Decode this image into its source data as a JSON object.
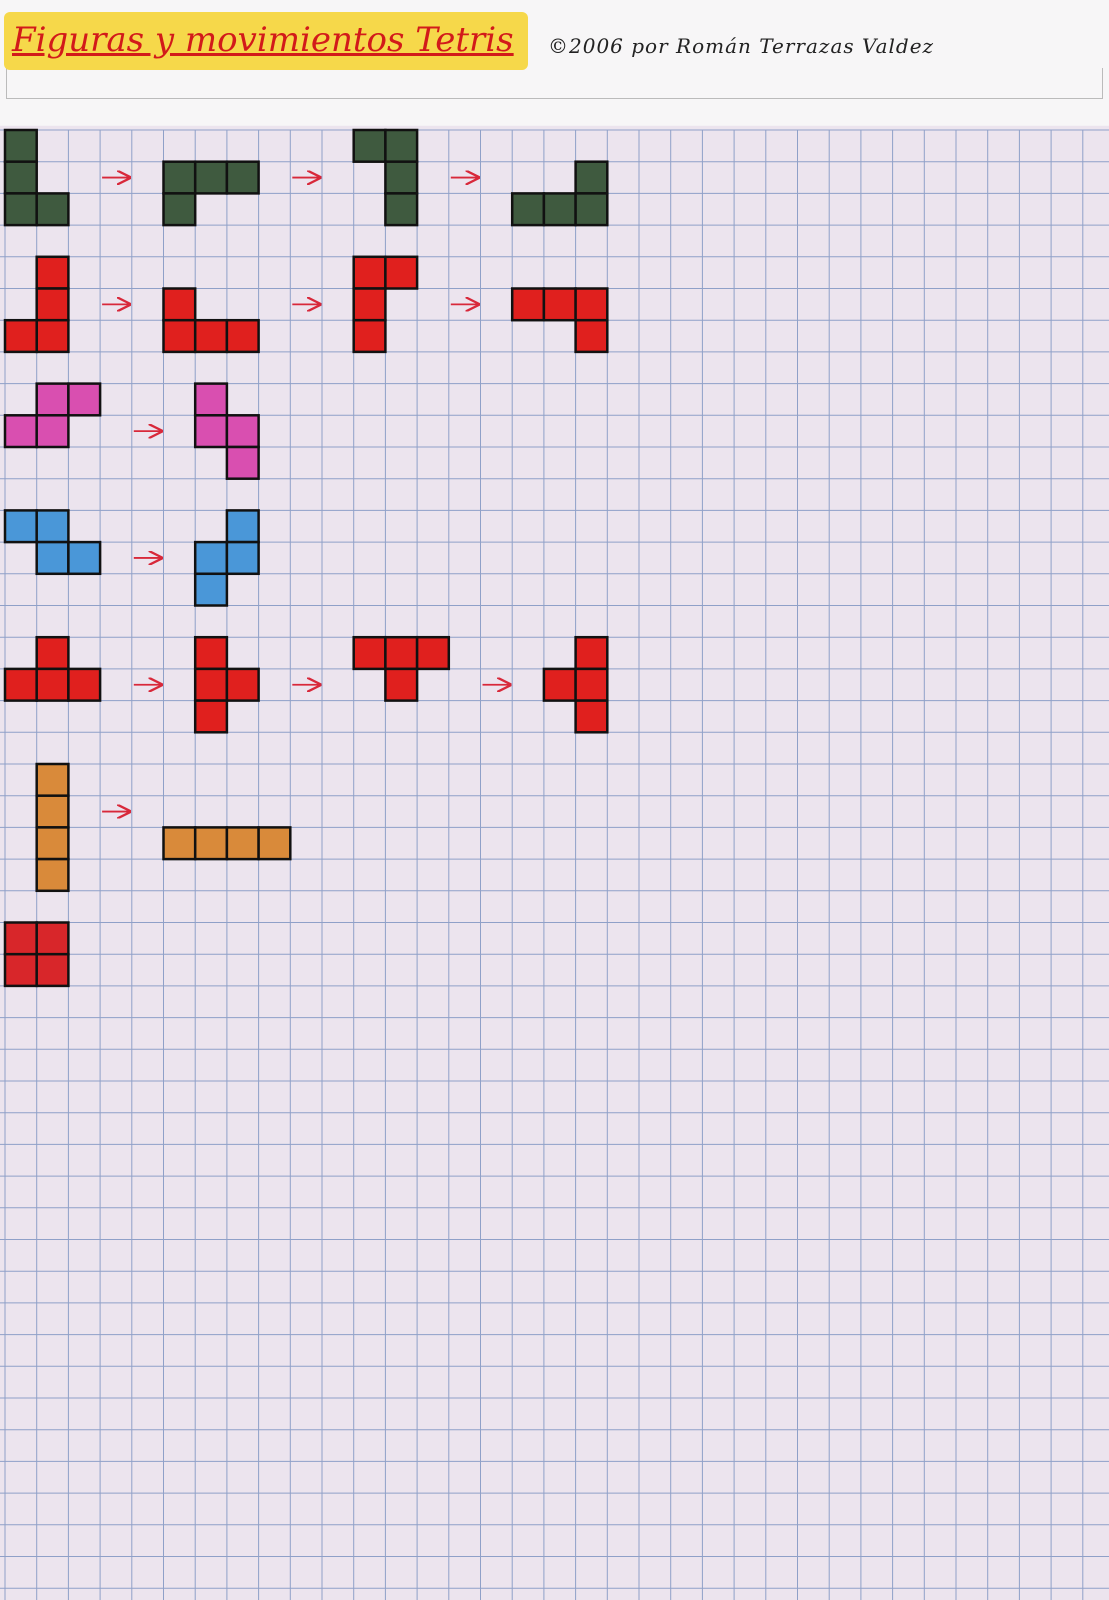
{
  "header": {
    "title": "Figuras y movimientos Tetris",
    "credit": "©2006 por Román Terrazas Valdez"
  }
}
